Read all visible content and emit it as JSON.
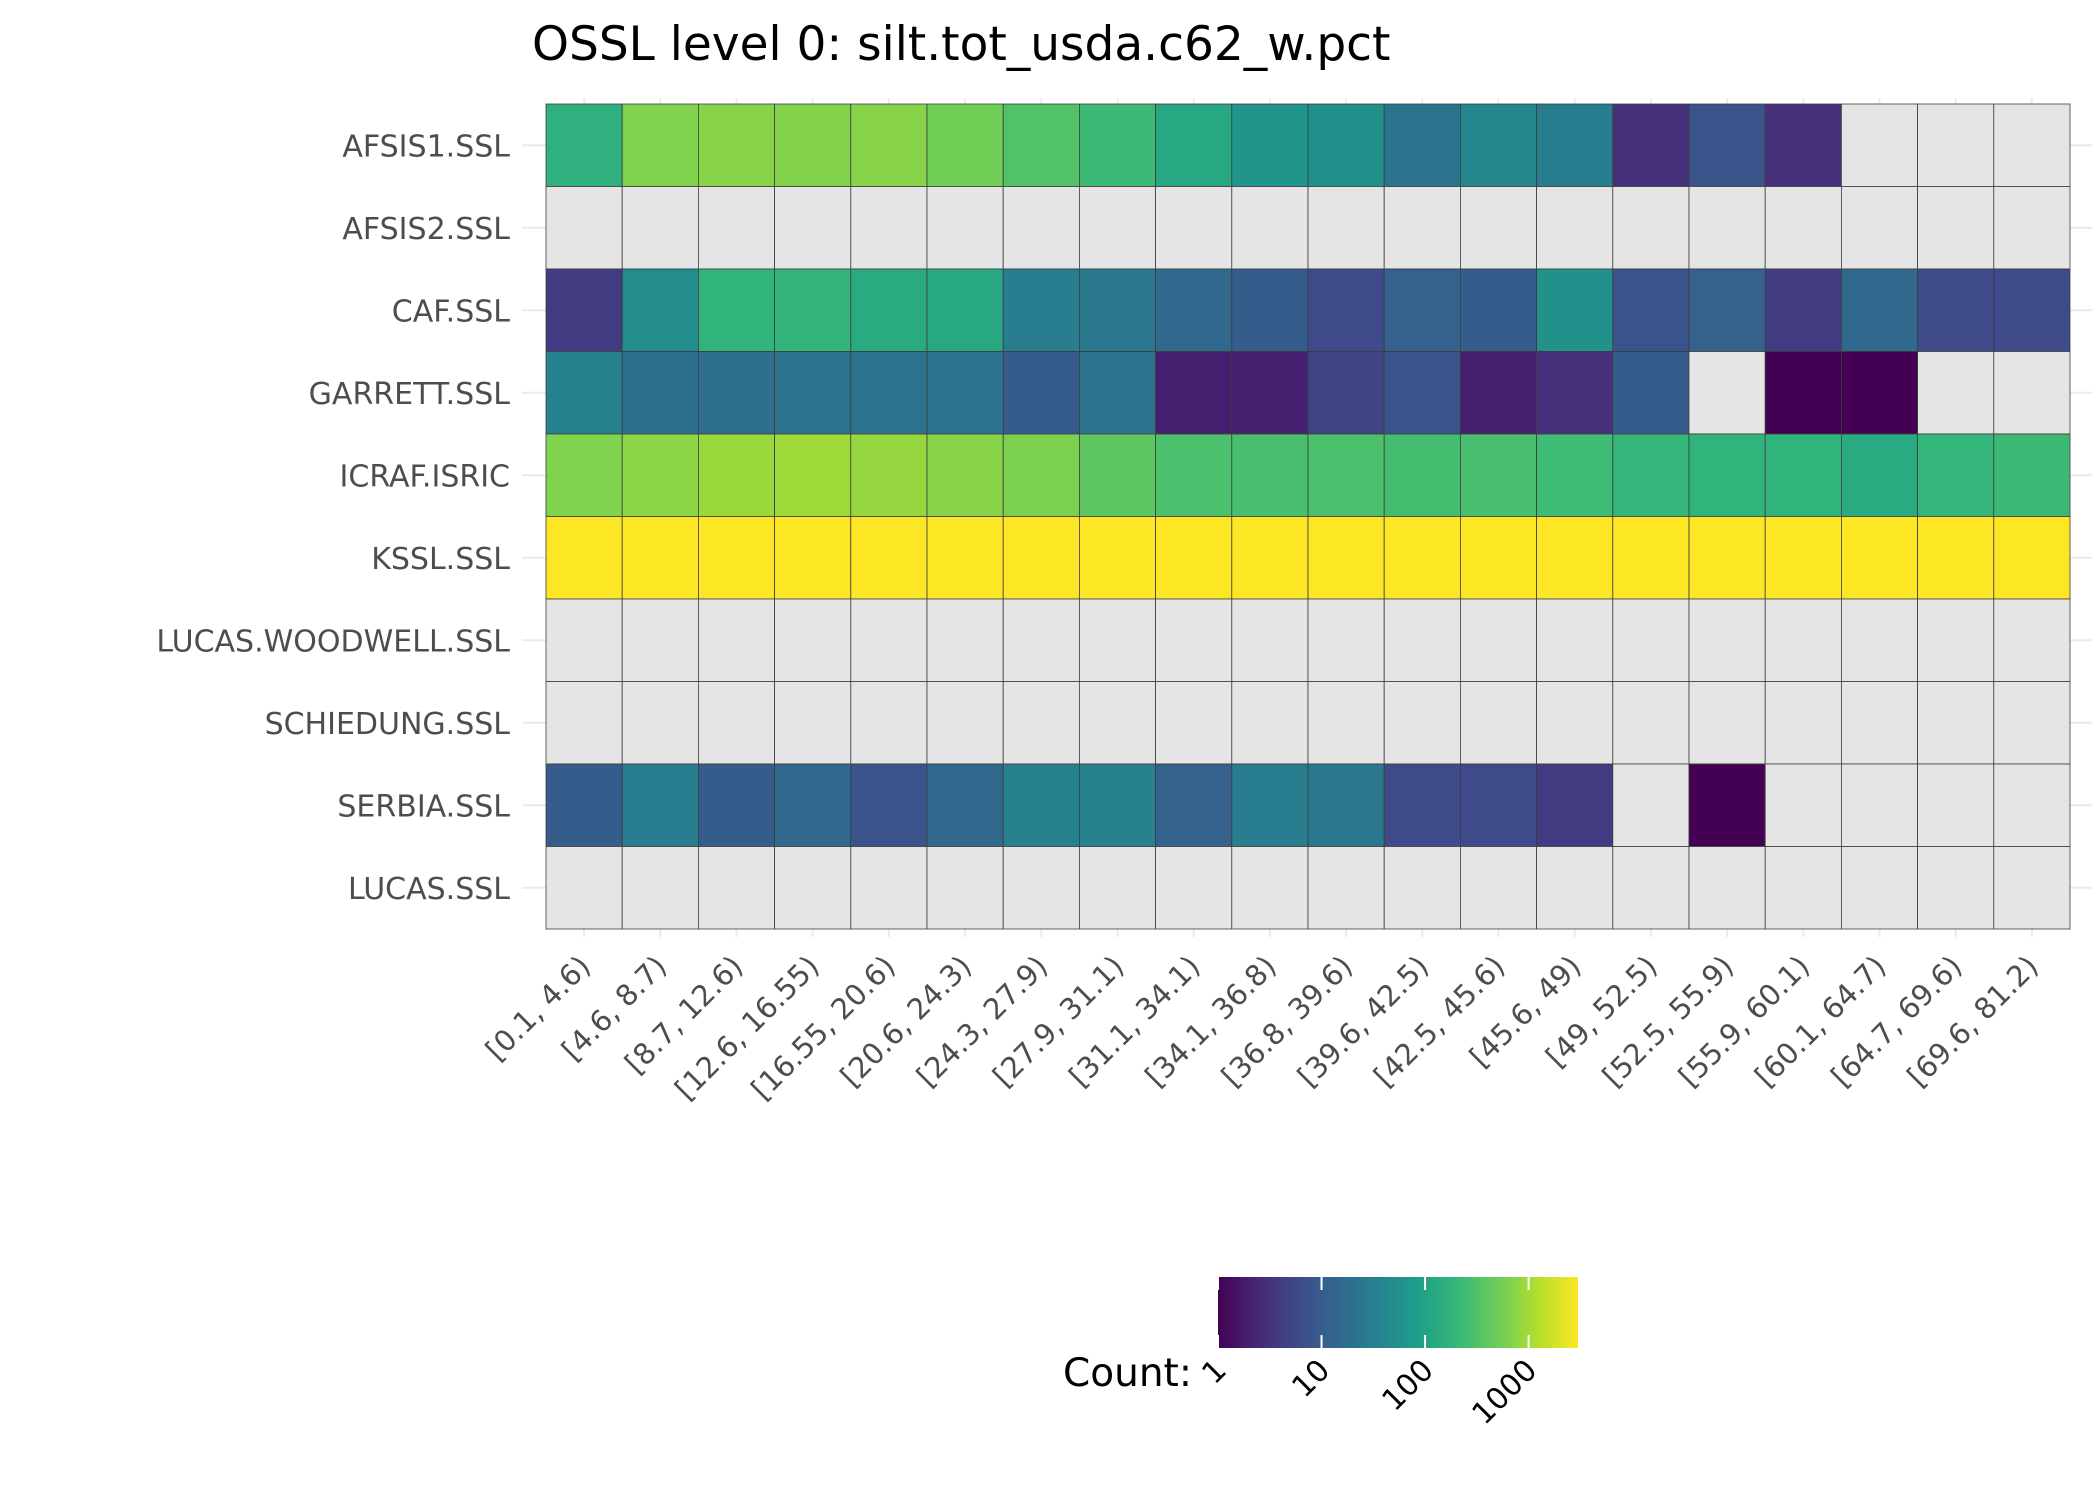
{
  "chart_data": {
    "type": "heatmap",
    "title": "OSSL level 0: silt.tot_usda.c62_w.pct",
    "xlabel": "",
    "ylabel": "",
    "color_scale": "viridis",
    "color_scale_type": "log10",
    "missing_color": "#e5e5e5",
    "grid": true,
    "legend_position": "bottom",
    "legend": {
      "title": "Count:",
      "ticks": [
        "1",
        "10",
        "100",
        "1000"
      ],
      "tick_values": [
        1,
        10,
        100,
        1000
      ],
      "range": [
        1,
        3000
      ]
    },
    "x_categories": [
      "[0.1, 4.6)",
      "[4.6, 8.7)",
      "[8.7, 12.6)",
      "[12.6, 16.55)",
      "[16.55, 20.6)",
      "[20.6, 24.3)",
      "[24.3, 27.9)",
      "[27.9, 31.1)",
      "[31.1, 34.1)",
      "[34.1, 36.8)",
      "[36.8, 39.6)",
      "[39.6, 42.5)",
      "[42.5, 45.6)",
      "[45.6, 49)",
      "[49, 52.5)",
      "[52.5, 55.9)",
      "[55.9, 60.1)",
      "[60.1, 64.7)",
      "[64.7, 69.6)",
      "[69.6, 81.2)"
    ],
    "y_categories": [
      "AFSIS1.SSL",
      "AFSIS2.SSL",
      "CAF.SSL",
      "GARRETT.SSL",
      "ICRAF.ISRIC",
      "KSSL.SSL",
      "LUCAS.WOODWELL.SSL",
      "SCHIEDUNG.SSL",
      "SERBIA.SSL",
      "LUCAS.SSL"
    ],
    "values": [
      [
        160,
        650,
        700,
        670,
        700,
        530,
        330,
        230,
        120,
        65,
        55,
        22,
        40,
        30,
        3,
        8,
        3,
        null,
        null,
        null
      ],
      [
        null,
        null,
        null,
        null,
        null,
        null,
        null,
        null,
        null,
        null,
        null,
        null,
        null,
        null,
        null,
        null,
        null,
        null,
        null,
        null
      ],
      [
        4,
        50,
        180,
        190,
        130,
        120,
        30,
        25,
        15,
        10,
        6,
        12,
        10,
        55,
        8,
        12,
        4,
        15,
        6,
        6
      ],
      [
        35,
        18,
        18,
        20,
        22,
        20,
        10,
        22,
        2,
        2,
        5,
        8,
        2,
        3,
        10,
        null,
        1,
        1,
        null,
        null
      ],
      [
        650,
        750,
        900,
        950,
        850,
        700,
        600,
        400,
        300,
        280,
        300,
        270,
        280,
        240,
        200,
        180,
        180,
        130,
        200,
        230
      ],
      [
        3000,
        3500,
        3800,
        4000,
        3800,
        4200,
        4500,
        4800,
        5200,
        5500,
        6000,
        6500,
        6800,
        6800,
        6800,
        7000,
        7000,
        6500,
        6000,
        5500
      ],
      [
        null,
        null,
        null,
        null,
        null,
        null,
        null,
        null,
        null,
        null,
        null,
        null,
        null,
        null,
        null,
        null,
        null,
        null,
        null,
        null
      ],
      [
        null,
        null,
        null,
        null,
        null,
        null,
        null,
        null,
        null,
        null,
        null,
        null,
        null,
        null,
        null,
        null,
        null,
        null,
        null,
        null
      ],
      [
        10,
        30,
        10,
        15,
        8,
        15,
        35,
        35,
        12,
        30,
        25,
        6,
        6,
        4,
        null,
        1,
        null,
        null,
        null,
        null
      ],
      [
        null,
        null,
        null,
        null,
        null,
        null,
        null,
        null,
        null,
        null,
        null,
        null,
        null,
        null,
        null,
        null,
        null,
        null,
        null,
        null
      ]
    ]
  }
}
